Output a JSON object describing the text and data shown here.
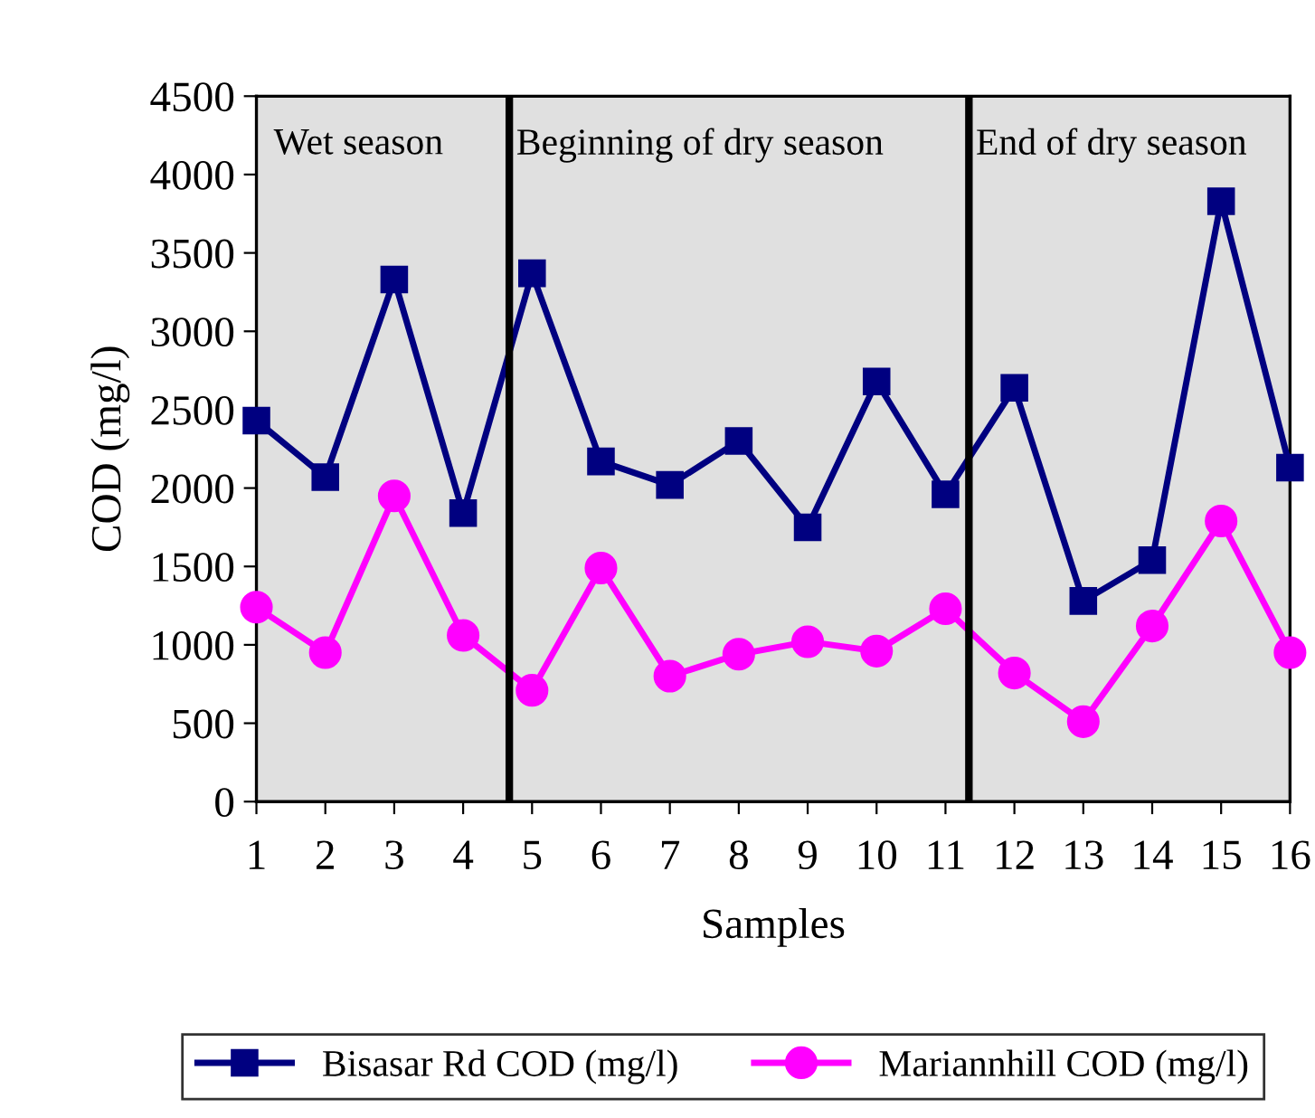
{
  "chart_data": {
    "type": "line",
    "xlabel": "Samples",
    "ylabel": "COD (mg/l)",
    "x": [
      1,
      2,
      3,
      4,
      5,
      6,
      7,
      8,
      9,
      10,
      11,
      12,
      13,
      14,
      15,
      16
    ],
    "xlim": [
      1,
      16
    ],
    "xticks": [
      1,
      2,
      3,
      4,
      5,
      6,
      7,
      8,
      9,
      10,
      11,
      12,
      13,
      14,
      15,
      16
    ],
    "ylim": [
      0,
      4500
    ],
    "yticks": [
      0,
      500,
      1000,
      1500,
      2000,
      2500,
      3000,
      3500,
      4000,
      4500
    ],
    "series": [
      {
        "name": "Bisasar Rd COD (mg/l)",
        "color": "#000080",
        "marker": "square",
        "values": [
          2430,
          2070,
          3330,
          1840,
          3370,
          2170,
          2020,
          2300,
          1750,
          2680,
          1960,
          2640,
          1280,
          1540,
          3830,
          2130
        ]
      },
      {
        "name": "Mariannhill COD (mg/l)",
        "color": "#ff00ff",
        "marker": "circle",
        "values": [
          1240,
          950,
          1950,
          1060,
          710,
          1490,
          800,
          940,
          1020,
          960,
          1230,
          820,
          510,
          1120,
          1790,
          950
        ]
      }
    ],
    "ref_lines": [
      {
        "axis": "x",
        "value": 4.67,
        "color": "#000000"
      },
      {
        "axis": "x",
        "value": 11.34,
        "color": "#000000"
      }
    ],
    "annotations": [
      "Wet season",
      "Beginning of dry season",
      "End of dry season"
    ],
    "grid": false,
    "legend": "bottom",
    "line_style": "solid"
  }
}
